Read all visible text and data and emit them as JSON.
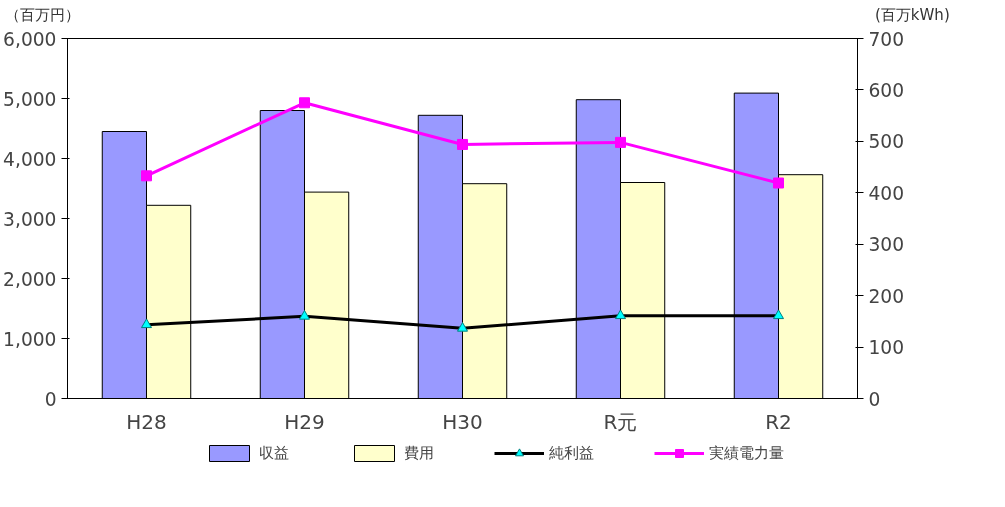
{
  "chart_data": {
    "type": "bar",
    "ylabel": "（百万円）",
    "y2label": "(百万kWh)",
    "categories": [
      "H28",
      "H29",
      "H30",
      "R元",
      "R2"
    ],
    "series": [
      {
        "name": "収益",
        "color": "#9999ff",
        "values": [
          4450,
          4800,
          4720,
          4980,
          5090
        ]
      },
      {
        "name": "費用",
        "color": "#ffffcc",
        "values": [
          3220,
          3440,
          3580,
          3600,
          3730
        ]
      },
      {
        "name": "純利益",
        "type": "line",
        "color": "#000000",
        "marker": "triangle",
        "values": [
          1230,
          1370,
          1170,
          1380,
          1380
        ]
      },
      {
        "name": "実績電力量",
        "type": "line",
        "color": "#ff00ff",
        "marker": "square",
        "axis": "y2",
        "values": [
          433,
          575,
          494,
          498,
          419
        ]
      }
    ],
    "ylim": [
      0,
      6000
    ],
    "yticks": [
      {
        "value": 0,
        "label": "0"
      },
      {
        "value": 1000,
        "label": "1,000"
      },
      {
        "value": 2000,
        "label": "2,000"
      },
      {
        "value": 3000,
        "label": "3,000"
      },
      {
        "value": 4000,
        "label": "4,000"
      },
      {
        "value": 5000,
        "label": "5,000"
      },
      {
        "value": 6000,
        "label": "6,000"
      }
    ],
    "y2lim": [
      0,
      700
    ],
    "y2ticks": [
      0,
      100,
      200,
      300,
      400,
      500,
      600,
      700
    ],
    "grid": false,
    "legend": "bottom"
  }
}
